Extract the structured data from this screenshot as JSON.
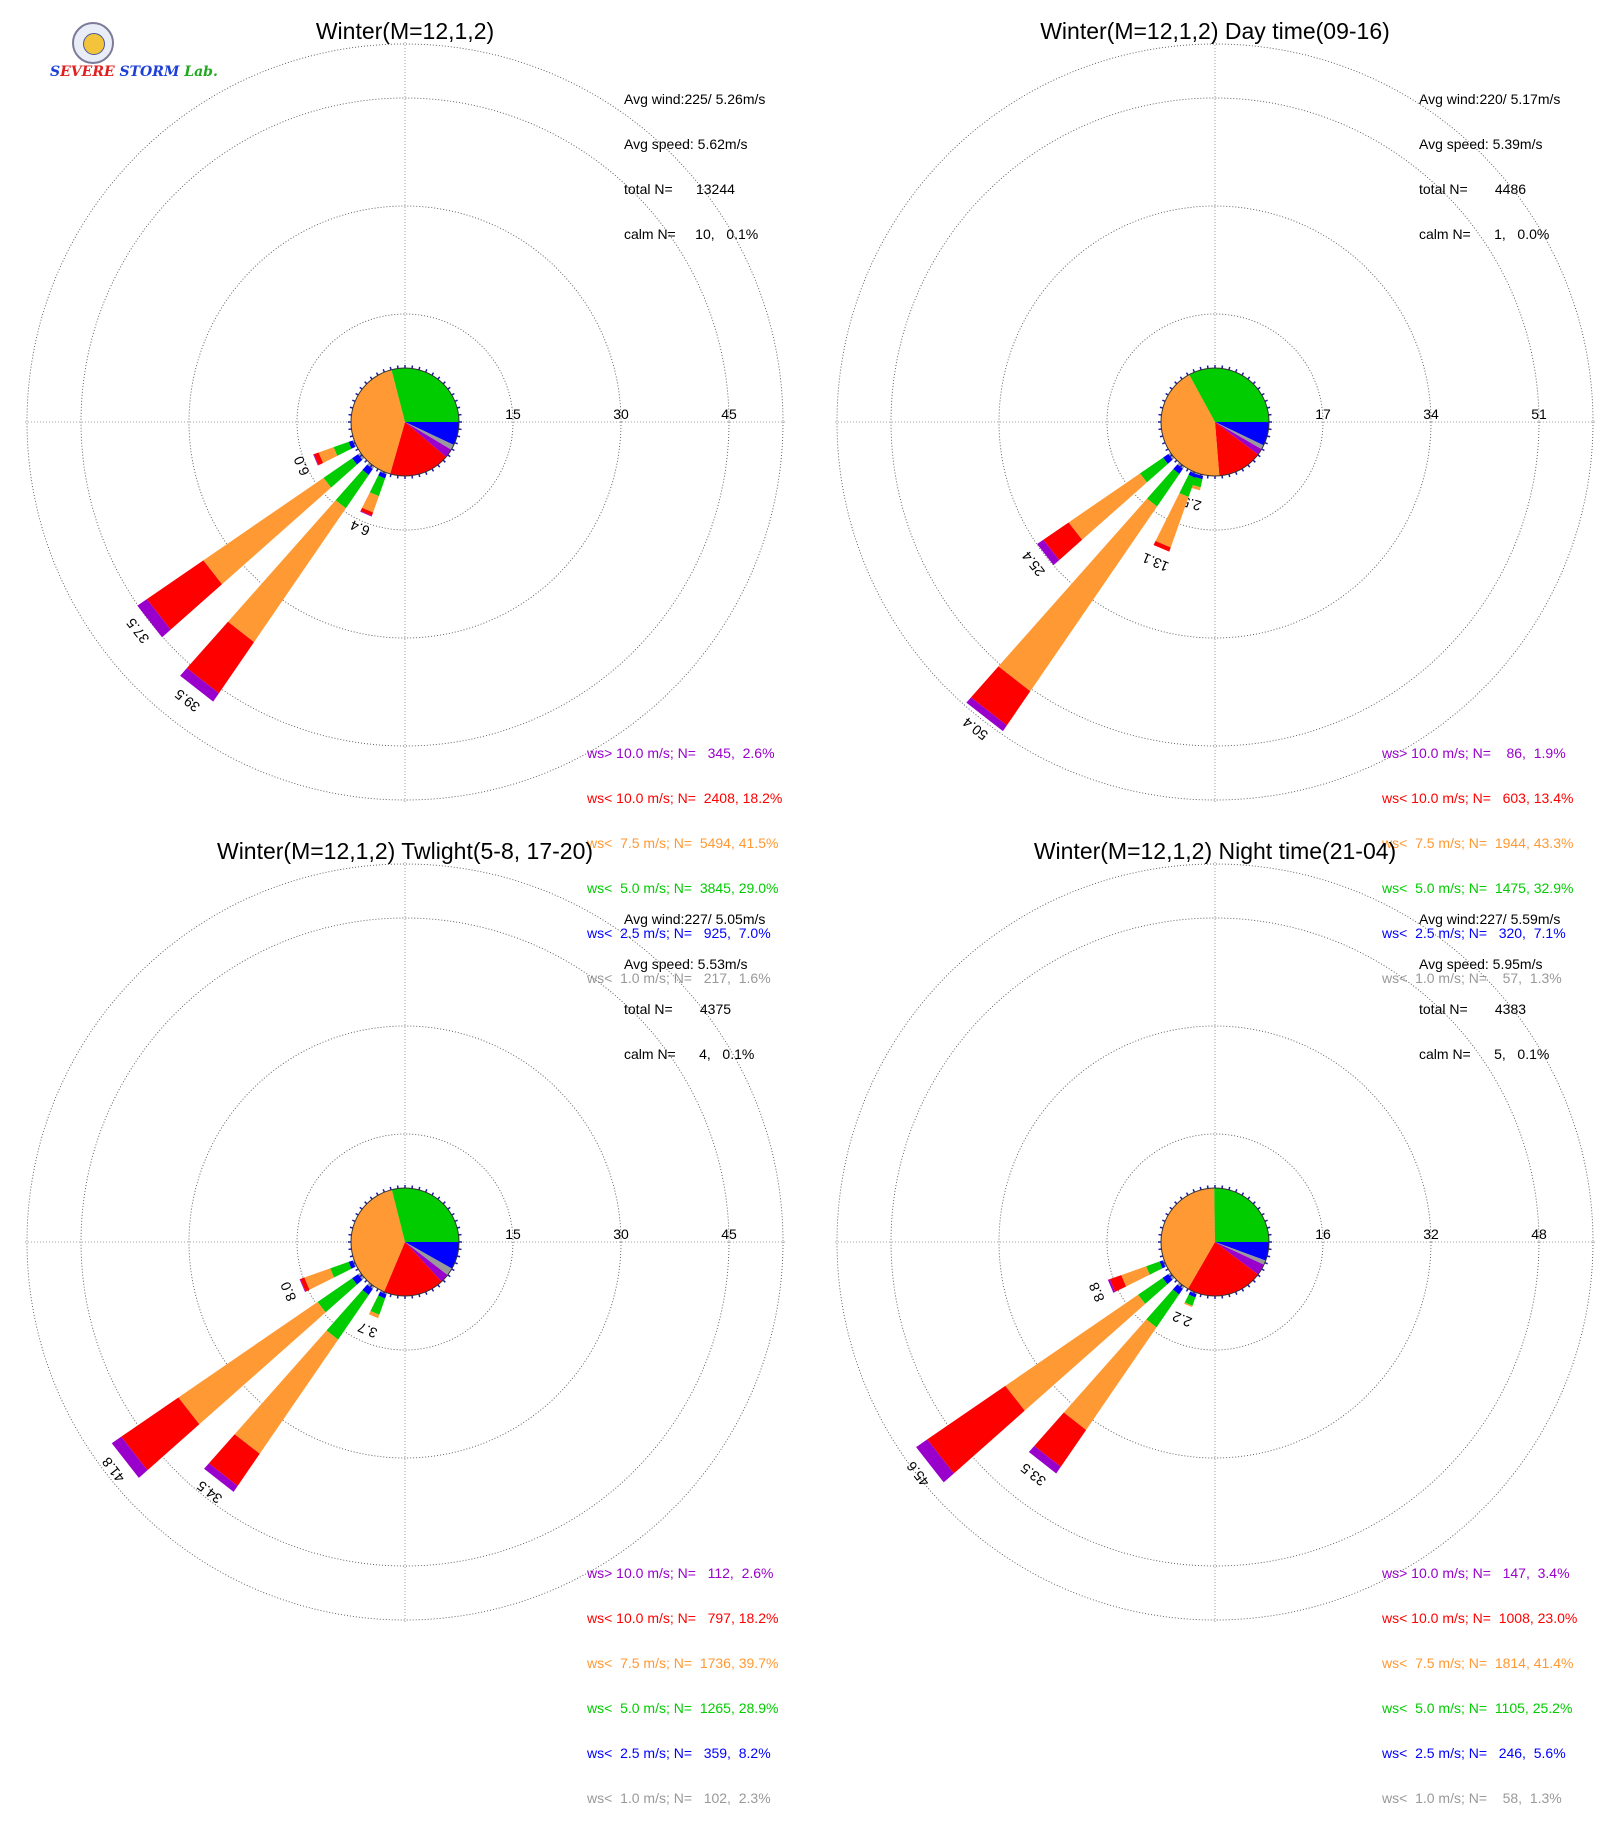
{
  "logo": {
    "text": "SEVERE STORM Lab."
  },
  "colors": {
    "ws_gt_10": "#9900cc",
    "ws_lt_10": "#ff0000",
    "ws_lt_7_5": "#ff9933",
    "ws_lt_5": "#00cc00",
    "ws_lt_2_5": "#0000ff",
    "ws_lt_1": "#999999"
  },
  "panels": [
    {
      "title": "Winter(M=12,1,2)",
      "stats": {
        "avg_wind": "Avg wind:225/ 5.26m/s",
        "avg_speed": "Avg speed: 5.62m/s",
        "total": "total N=      13244",
        "calm": "calm N=     10,   0.1%"
      },
      "legend": [
        "ws> 10.0 m/s; N=   345,  2.6%",
        "ws< 10.0 m/s; N=  2408, 18.2%",
        "ws<  7.5 m/s; N=  5494, 41.5%",
        "ws<  5.0 m/s; N=  3845, 29.0%",
        "ws<  2.5 m/s; N=   925,  7.0%",
        "ws<  1.0 m/s; N=   217,  1.6%"
      ]
    },
    {
      "title": "Winter(M=12,1,2) Day time(09-16)",
      "stats": {
        "avg_wind": "Avg wind:220/ 5.17m/s",
        "avg_speed": "Avg speed: 5.39m/s",
        "total": "total N=       4486",
        "calm": "calm N=      1,   0.0%"
      },
      "legend": [
        "ws> 10.0 m/s; N=    86,  1.9%",
        "ws< 10.0 m/s; N=   603, 13.4%",
        "ws<  7.5 m/s; N=  1944, 43.3%",
        "ws<  5.0 m/s; N=  1475, 32.9%",
        "ws<  2.5 m/s; N=   320,  7.1%",
        "ws<  1.0 m/s; N=    57,  1.3%"
      ]
    },
    {
      "title": "Winter(M=12,1,2) Twlight(5-8, 17-20)",
      "stats": {
        "avg_wind": "Avg wind:227/ 5.05m/s",
        "avg_speed": "Avg speed: 5.53m/s",
        "total": "total N=       4375",
        "calm": "calm N=      4,   0.1%"
      },
      "legend": [
        "ws> 10.0 m/s; N=   112,  2.6%",
        "ws< 10.0 m/s; N=   797, 18.2%",
        "ws<  7.5 m/s; N=  1736, 39.7%",
        "ws<  5.0 m/s; N=  1265, 28.9%",
        "ws<  2.5 m/s; N=   359,  8.2%",
        "ws<  1.0 m/s; N=   102,  2.3%"
      ]
    },
    {
      "title": "Winter(M=12,1,2) Night time(21-04)",
      "stats": {
        "avg_wind": "Avg wind:227/ 5.59m/s",
        "avg_speed": "Avg speed: 5.95m/s",
        "total": "total N=       4383",
        "calm": "calm N=      5,   0.1%"
      },
      "legend": [
        "ws> 10.0 m/s; N=   147,  3.4%",
        "ws< 10.0 m/s; N=  1008, 23.0%",
        "ws<  7.5 m/s; N=  1814, 41.4%",
        "ws<  5.0 m/s; N=  1105, 25.2%",
        "ws<  2.5 m/s; N=   246,  5.6%",
        "ws<  1.0 m/s; N=    58,  1.3%"
      ]
    }
  ],
  "chart_data": [
    {
      "type": "windrose",
      "title": "Winter(M=12,1,2)",
      "rings": [
        15,
        30,
        45
      ],
      "rmax": 52.5,
      "pie_percent": [
        1.6,
        7.0,
        29.0,
        41.5,
        18.2,
        2.6
      ],
      "petals": [
        {
          "dir": 203,
          "total": 6.4,
          "label": "6.4",
          "segments": [
            0.2,
            0.6,
            2.6,
            2.4,
            0.5,
            0.1
          ]
        },
        {
          "dir": 218,
          "total": 39.5,
          "label": "39.5",
          "segments": [
            0.4,
            1.0,
            5.6,
            22.5,
            8.6,
            1.4
          ]
        },
        {
          "dir": 232,
          "total": 37.5,
          "label": "37.5",
          "segments": [
            0.4,
            1.0,
            4.8,
            20.2,
            9.5,
            1.6
          ]
        },
        {
          "dir": 247,
          "total": 6.0,
          "label": "6.0",
          "segments": [
            0.2,
            0.6,
            2.2,
            2.2,
            0.7,
            0.1
          ]
        }
      ]
    },
    {
      "type": "windrose",
      "title": "Winter(M=12,1,2) Day time(09-16)",
      "rings": [
        17,
        34,
        51
      ],
      "rmax": 59.5,
      "pie_percent": [
        1.3,
        7.1,
        32.9,
        43.3,
        13.4,
        1.9
      ],
      "petals": [
        {
          "dir": 196,
          "total": 2.5,
          "label": "2.5",
          "segments": [
            0.2,
            0.5,
            1.3,
            0.5,
            0,
            0
          ]
        },
        {
          "dir": 203,
          "total": 13.1,
          "label": "13.1",
          "segments": [
            0.2,
            0.6,
            3.2,
            8.4,
            0.7,
            0
          ]
        },
        {
          "dir": 218,
          "total": 50.4,
          "label": "50.4",
          "segments": [
            0.4,
            1.0,
            6.2,
            35.2,
            6.5,
            1.1
          ]
        },
        {
          "dir": 232,
          "total": 25.4,
          "label": "25.4",
          "segments": [
            0.4,
            1.0,
            4.4,
            13.6,
            4.8,
            1.2
          ]
        }
      ]
    },
    {
      "type": "windrose",
      "title": "Winter(M=12,1,2) Twlight(5-8, 17-20)",
      "rings": [
        15,
        30,
        45
      ],
      "rmax": 52.5,
      "pie_percent": [
        2.3,
        8.2,
        28.9,
        39.7,
        18.2,
        2.6
      ],
      "petals": [
        {
          "dir": 203,
          "total": 3.7,
          "label": "3.7",
          "segments": [
            0.2,
            0.6,
            2.4,
            0.5,
            0,
            0
          ]
        },
        {
          "dir": 218,
          "total": 34.5,
          "label": "34.5",
          "segments": [
            0.4,
            1.0,
            7.5,
            19.2,
            5.4,
            1.0
          ]
        },
        {
          "dir": 232,
          "total": 41.8,
          "label": "41.8",
          "segments": [
            0.4,
            1.0,
            5.8,
            23.4,
            9.6,
            1.6
          ]
        },
        {
          "dir": 247,
          "total": 8.0,
          "label": "8.0",
          "segments": [
            0.2,
            0.6,
            2.7,
            3.8,
            0.6,
            0.1
          ]
        }
      ]
    },
    {
      "type": "windrose",
      "title": "Winter(M=12,1,2) Night time(21-04)",
      "rings": [
        16,
        32,
        48
      ],
      "rmax": 56,
      "pie_percent": [
        1.3,
        5.6,
        25.2,
        41.4,
        23.0,
        3.4
      ],
      "petals": [
        {
          "dir": 203,
          "total": 2.2,
          "label": "2.2",
          "segments": [
            0.2,
            0.5,
            1.3,
            0.2,
            0,
            0
          ]
        },
        {
          "dir": 218,
          "total": 33.5,
          "label": "33.5",
          "segments": [
            0.4,
            1.0,
            5.9,
            18.4,
            6.6,
            1.2
          ]
        },
        {
          "dir": 232,
          "total": 45.6,
          "label": "45.6",
          "segments": [
            0.4,
            1.0,
            4.4,
            23.8,
            14.0,
            2.0
          ]
        },
        {
          "dir": 247,
          "total": 8.8,
          "label": "8.8",
          "segments": [
            0.2,
            0.5,
            2.1,
            3.9,
            1.8,
            0.3
          ]
        }
      ]
    }
  ]
}
